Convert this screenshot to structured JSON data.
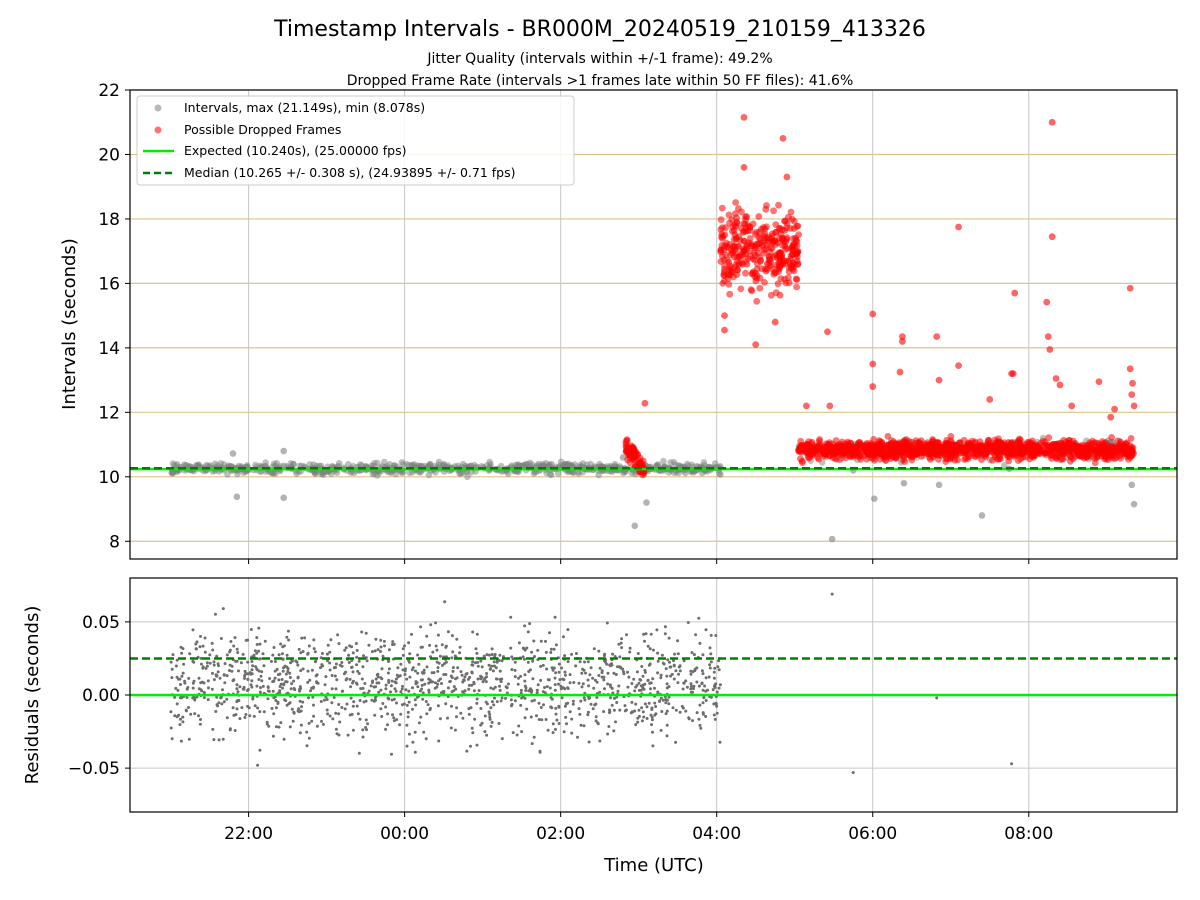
{
  "chart_data": [
    {
      "type": "scatter",
      "title": "Timestamp Intervals - BR000M_20240519_210159_413326",
      "subtitle_lines": [
        "Jitter Quality (intervals within +/-1 frame): 49.2%",
        "Dropped Frame Rate (intervals >1 frames late within 50 FF files): 41.6%"
      ],
      "ylabel": "Intervals (seconds)",
      "xlabel": "",
      "ylim": [
        7.45,
        22.0
      ],
      "yticks": [
        8,
        10,
        12,
        14,
        16,
        18,
        20,
        22
      ],
      "xlim_hours_utc": [
        -3.52,
        9.9
      ],
      "xticks": [
        {
          "value": -2,
          "label": "22:00"
        },
        {
          "value": 0,
          "label": "00:00"
        },
        {
          "value": 2,
          "label": "02:00"
        },
        {
          "value": 4,
          "label": "04:00"
        },
        {
          "value": 6,
          "label": "06:00"
        },
        {
          "value": 8,
          "label": "08:00"
        }
      ],
      "gold_grid_lines": [
        8,
        10,
        12,
        14,
        16,
        18,
        20,
        22
      ],
      "vertical_grid": true,
      "legend_position": "top-left",
      "legend": [
        {
          "label": "Intervals, max (21.149s), min (8.078s)",
          "marker": "grey-dot"
        },
        {
          "label": "Possible Dropped Frames",
          "marker": "red-dot"
        },
        {
          "label": "Expected (10.240s), (25.00000 fps)",
          "line": "solid-lime"
        },
        {
          "label": "Median (10.265 +/- 0.308 s), (24.93895 +/- 0.71 fps)",
          "line": "dashed-green"
        }
      ],
      "expected_interval": 10.24,
      "median_interval": 10.265,
      "series": [
        {
          "name": "Intervals, max (21.149s), min (8.078s)",
          "segments": [
            {
              "x_range": [
                -3.0,
                4.05
              ],
              "center": 10.26,
              "spread": 0.12
            },
            {
              "x_range": [
                5.05,
                9.35
              ],
              "center": 10.85,
              "spread": 0.22
            }
          ],
          "outliers": [
            [
              -2.15,
              9.38
            ],
            [
              -1.55,
              9.35
            ],
            [
              -2.2,
              10.72
            ],
            [
              -1.55,
              10.8
            ],
            [
              2.95,
              8.48
            ],
            [
              3.1,
              9.2
            ],
            [
              2.8,
              10.6
            ],
            [
              5.48,
              8.07
            ],
            [
              5.75,
              10.2
            ],
            [
              6.02,
              9.32
            ],
            [
              6.4,
              9.8
            ],
            [
              6.85,
              9.75
            ],
            [
              7.4,
              8.8
            ],
            [
              7.75,
              10.25
            ],
            [
              9.35,
              9.15
            ],
            [
              9.32,
              9.75
            ]
          ]
        },
        {
          "name": "Possible Dropped Frames",
          "segments": [
            {
              "x_range": [
                2.83,
                3.07
              ],
              "center_start": 11.0,
              "center_end": 10.25,
              "spread": 0.2
            },
            {
              "x_range": [
                4.05,
                5.05
              ],
              "center": 17.0,
              "spread": 0.85
            },
            {
              "x_range": [
                5.05,
                9.35
              ],
              "center": 10.85,
              "spread": 0.2
            }
          ],
          "outliers": [
            [
              3.08,
              12.28
            ],
            [
              4.35,
              21.15
            ],
            [
              4.85,
              20.5
            ],
            [
              4.35,
              19.6
            ],
            [
              4.9,
              19.3
            ],
            [
              4.1,
              15.0
            ],
            [
              4.1,
              14.55
            ],
            [
              4.5,
              14.1
            ],
            [
              4.75,
              14.8
            ],
            [
              5.42,
              14.5
            ],
            [
              5.45,
              12.2
            ],
            [
              5.15,
              12.2
            ],
            [
              6.0,
              15.05
            ],
            [
              6.0,
              13.5
            ],
            [
              6.0,
              12.8
            ],
            [
              6.38,
              14.35
            ],
            [
              6.38,
              14.2
            ],
            [
              6.35,
              13.25
            ],
            [
              6.82,
              14.35
            ],
            [
              6.85,
              13.0
            ],
            [
              7.1,
              17.75
            ],
            [
              7.1,
              13.45
            ],
            [
              7.5,
              12.4
            ],
            [
              7.82,
              15.7
            ],
            [
              7.78,
              13.2
            ],
            [
              7.8,
              13.2
            ],
            [
              8.23,
              15.42
            ],
            [
              8.25,
              14.35
            ],
            [
              8.27,
              13.95
            ],
            [
              8.3,
              17.45
            ],
            [
              8.3,
              21.0
            ],
            [
              8.35,
              13.05
            ],
            [
              8.4,
              12.85
            ],
            [
              8.55,
              12.2
            ],
            [
              8.9,
              12.95
            ],
            [
              9.3,
              15.85
            ],
            [
              9.3,
              13.35
            ],
            [
              9.33,
              12.9
            ],
            [
              9.32,
              12.55
            ],
            [
              9.35,
              12.2
            ],
            [
              9.1,
              12.1
            ],
            [
              9.05,
              11.85
            ]
          ]
        }
      ]
    },
    {
      "type": "scatter",
      "ylabel": "Residuals (seconds)",
      "xlabel": "Time (UTC)",
      "ylim": [
        -0.08,
        0.08
      ],
      "yticks": [
        {
          "value": 0.05,
          "label": "0.05"
        },
        {
          "value": 0.0,
          "label": "0.00"
        },
        {
          "value": -0.05,
          "label": "−0.05"
        }
      ],
      "xlim_hours_utc": [
        -3.52,
        9.9
      ],
      "xticks": [
        {
          "value": -2,
          "label": "22:00"
        },
        {
          "value": 0,
          "label": "00:00"
        },
        {
          "value": 2,
          "label": "02:00"
        },
        {
          "value": 4,
          "label": "04:00"
        },
        {
          "value": 6,
          "label": "06:00"
        },
        {
          "value": 8,
          "label": "08:00"
        }
      ],
      "grid": true,
      "reference_lines": [
        {
          "y": 0.0,
          "style": "solid-lime"
        },
        {
          "y": 0.025,
          "style": "dashed-green"
        }
      ],
      "series": [
        {
          "name": "residuals",
          "segments": [
            {
              "x_range": [
                -3.0,
                4.05
              ],
              "center": 0.008,
              "spread": 0.025
            }
          ],
          "outliers": [
            [
              5.48,
              0.069
            ],
            [
              5.75,
              -0.053
            ],
            [
              6.82,
              -0.002
            ],
            [
              7.78,
              -0.047
            ]
          ]
        }
      ]
    }
  ],
  "colors": {
    "interval_marker": "#808080",
    "dropped_marker": "#ff0000",
    "expected_line": "#00ee00",
    "median_line": "#008000",
    "gold_grid": "#d9c48f",
    "grid": "#c8c8c8",
    "residual_marker": "#6e6e6e"
  }
}
